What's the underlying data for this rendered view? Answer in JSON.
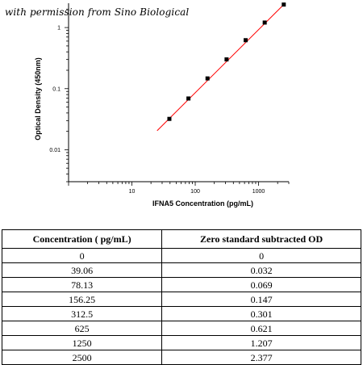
{
  "watermark": "with permission from Sino Biological",
  "colors": {
    "fit_line": "#ff0000",
    "points": "#000000",
    "axes": "#000000"
  },
  "chart_data": {
    "type": "scatter",
    "xlabel": "IFNA5 Concentration (pg/mL)",
    "ylabel": "Optical Density (450nm)",
    "x_scale": "log",
    "y_scale": "log",
    "xlim": [
      1,
      3000
    ],
    "ylim": [
      0.003,
      2.5
    ],
    "x_ticks": [
      10,
      100,
      1000
    ],
    "x_tick_labels": [
      "10",
      "100",
      "1000"
    ],
    "y_ticks": [
      0.01,
      0.1,
      1
    ],
    "y_tick_labels": [
      "0.01",
      "0.1",
      "1"
    ],
    "grid": false,
    "points": [
      {
        "x": 39.06,
        "y": 0.032
      },
      {
        "x": 78.13,
        "y": 0.069
      },
      {
        "x": 156.25,
        "y": 0.147
      },
      {
        "x": 312.5,
        "y": 0.301
      },
      {
        "x": 625,
        "y": 0.621
      },
      {
        "x": 1250,
        "y": 1.207
      },
      {
        "x": 2500,
        "y": 2.377
      }
    ],
    "fit_line": {
      "x": [
        25,
        2500
      ],
      "y": [
        0.0205,
        2.377
      ]
    }
  },
  "table": {
    "headers": [
      "Concentration ( pg/mL)",
      "Zero standard subtracted OD"
    ],
    "rows": [
      [
        "0",
        "0"
      ],
      [
        "39.06",
        "0.032"
      ],
      [
        "78.13",
        "0.069"
      ],
      [
        "156.25",
        "0.147"
      ],
      [
        "312.5",
        "0.301"
      ],
      [
        "625",
        "0.621"
      ],
      [
        "1250",
        "1.207"
      ],
      [
        "2500",
        "2.377"
      ]
    ]
  }
}
